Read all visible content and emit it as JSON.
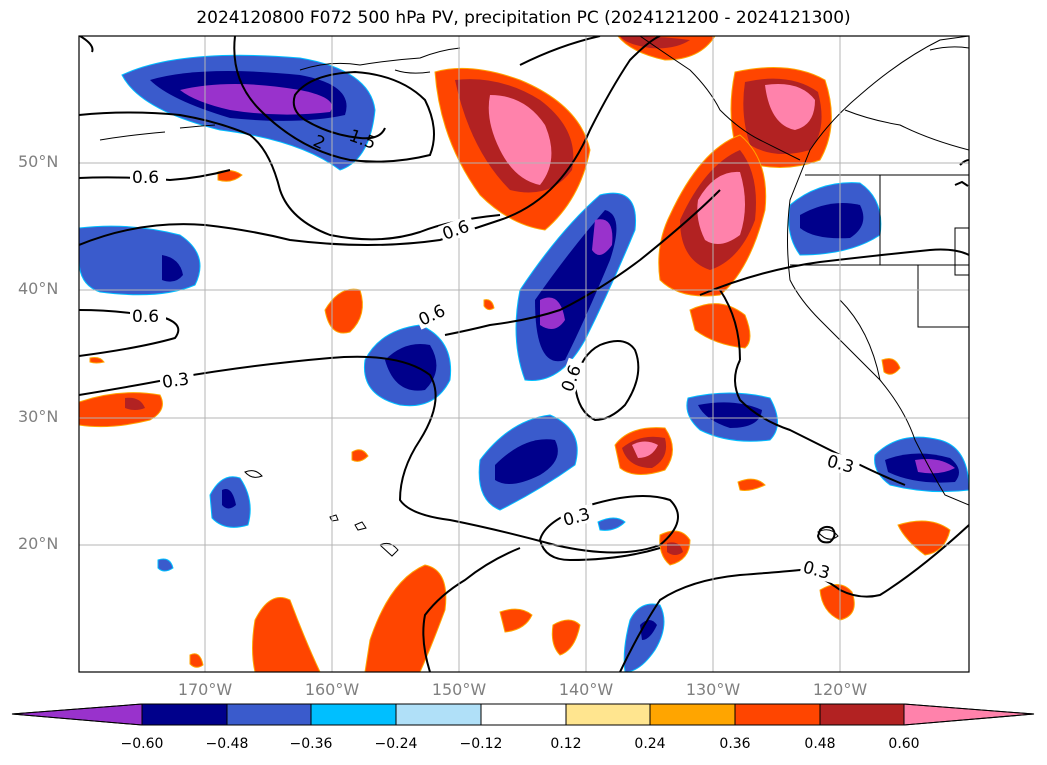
{
  "title": "2024120800 F072 500 hPa PV, precipitation PC (2024121200 - 2024121300)",
  "map": {
    "lat_labels": [
      "50°N",
      "40°N",
      "30°N",
      "20°N"
    ],
    "lon_labels": [
      "170°W",
      "160°W",
      "150°W",
      "140°W",
      "130°W",
      "120°W"
    ],
    "contour_labels": [
      "0.6",
      "0.6",
      "0.6",
      "0.6",
      "0.6",
      "0.3",
      "0.3",
      "0.3",
      "0.3",
      "1.5",
      "2"
    ],
    "grid": true
  },
  "colorbar": {
    "ticks": [
      "−0.60",
      "−0.48",
      "−0.36",
      "−0.24",
      "−0.12",
      "0.12",
      "0.24",
      "0.36",
      "0.48",
      "0.60"
    ],
    "colors": [
      "#9932cc",
      "#00008b",
      "#3a5bcc",
      "#00bfff",
      "#b0e0f8",
      "#ffffff",
      "#ffe58f",
      "#ffa500",
      "#ff4500",
      "#b22222",
      "#ff82ab"
    ],
    "extend": "both"
  }
}
